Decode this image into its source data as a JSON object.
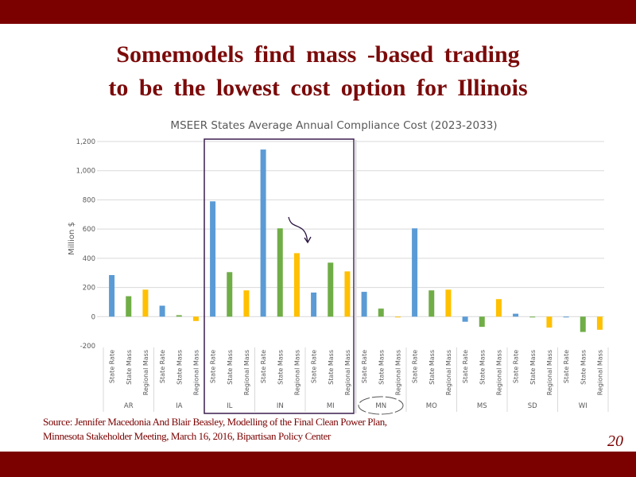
{
  "slide": {
    "title_line1": "Somemodels   find  mass -based   trading",
    "title_line2": "to  be  the  lowest   cost  option   for Illinois",
    "source_line1": "Source: Jennifer Macedonia And Blair Beasley, Modelling of  the Final Clean Power Plan,",
    "source_line2": "Minnesota Stakeholder Meeting, March 16,  2016,  Bipartisan Policy Center",
    "page_number": "20"
  },
  "chart_data": {
    "type": "bar",
    "title": "MSEER States Average Annual Compliance Cost (2023-2033)",
    "ylabel": "Million $",
    "xlabel": "",
    "ylim": [
      -200,
      1200
    ],
    "yticks": [
      "-200",
      "0",
      "200",
      "400",
      "600",
      "800",
      "1,000",
      "1,200"
    ],
    "ytick_values": [
      -200,
      0,
      200,
      400,
      600,
      800,
      1000,
      1200
    ],
    "grid": true,
    "groups": [
      "AR",
      "IA",
      "IL",
      "IN",
      "MI",
      "MN",
      "MO",
      "MS",
      "SD",
      "WI"
    ],
    "subcategories": [
      "State Rate",
      "State Mass",
      "Regional Mass"
    ],
    "colors": {
      "State Rate": "#5b9bd5",
      "State Mass": "#70ad47",
      "Regional Mass": "#ffc000"
    },
    "values": [
      [
        285,
        140,
        185
      ],
      [
        75,
        10,
        -30
      ],
      [
        790,
        305,
        180
      ],
      [
        1145,
        605,
        435
      ],
      [
        165,
        370,
        310
      ],
      [
        170,
        55,
        -5
      ],
      [
        605,
        180,
        185
      ],
      [
        -35,
        -70,
        120
      ],
      [
        20,
        -5,
        -75
      ],
      [
        -5,
        -105,
        -90
      ]
    ],
    "highlight_box_groups": [
      "IL",
      "IN",
      "MI"
    ],
    "circled_group": "MN"
  }
}
